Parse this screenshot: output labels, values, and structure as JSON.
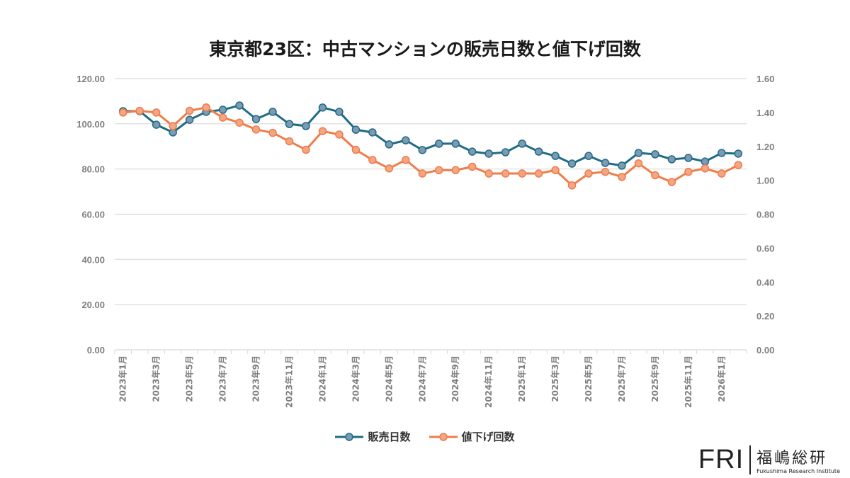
{
  "chart_data": {
    "type": "line",
    "title": "東京都23区：中古マンションの販売日数と値下げ回数",
    "x": [
      "2023年1月",
      "2023年2月",
      "2023年3月",
      "2023年4月",
      "2023年5月",
      "2023年6月",
      "2023年7月",
      "2023年8月",
      "2023年9月",
      "2023年10月",
      "2023年11月",
      "2023年12月",
      "2024年1月",
      "2024年2月",
      "2024年3月",
      "2024年4月",
      "2024年5月",
      "2024年6月",
      "2024年7月",
      "2024年8月",
      "2024年9月",
      "2024年10月",
      "2024年11月",
      "2024年12月",
      "2025年1月",
      "2025年2月",
      "2025年3月",
      "2025年4月",
      "2025年5月",
      "2025年6月",
      "2025年7月",
      "2025年8月",
      "2025年9月",
      "2025年10月",
      "2025年11月",
      "2025年12月",
      "2026年1月",
      "2026年2月"
    ],
    "x_tick_labels": [
      "2023年1月",
      "2023年3月",
      "2023年5月",
      "2023年7月",
      "2023年9月",
      "2023年11月",
      "2024年1月",
      "2024年3月",
      "2024年5月",
      "2024年7月",
      "2024年9月",
      "2024年11月",
      "2025年1月",
      "2025年3月",
      "2025年5月",
      "2025年7月",
      "2025年9月",
      "2025年11月",
      "2026年1月"
    ],
    "y_left": {
      "ylim": [
        0,
        120
      ],
      "ticks": [
        "0.00",
        "20.00",
        "40.00",
        "60.00",
        "80.00",
        "100.00",
        "120.00"
      ]
    },
    "y_right": {
      "ylim": [
        0,
        1.6
      ],
      "ticks": [
        "0.00",
        "0.20",
        "0.40",
        "0.60",
        "0.80",
        "1.00",
        "1.20",
        "1.40",
        "1.60"
      ]
    },
    "grid": true,
    "legend_placement": "bottom",
    "series": [
      {
        "name": "販売日数",
        "axis": "left",
        "color": "#1f6b85",
        "marker_color": "#7c9bb3",
        "values": [
          105.6,
          105.6,
          99.6,
          96.2,
          101.8,
          105.3,
          106.2,
          108.1,
          102.1,
          105.3,
          99.9,
          99.0,
          107.2,
          105.3,
          97.4,
          96.2,
          90.9,
          92.7,
          88.4,
          91.2,
          91.2,
          87.7,
          86.8,
          87.4,
          91.2,
          87.7,
          85.8,
          82.4,
          85.8,
          82.7,
          81.5,
          87.1,
          86.5,
          84.3,
          84.9,
          83.3,
          87.1,
          86.8
        ]
      },
      {
        "name": "値下げ回数",
        "axis": "right",
        "color": "#ee7d4a",
        "marker_color": "#f4a584",
        "values": [
          1.4,
          1.41,
          1.4,
          1.32,
          1.41,
          1.43,
          1.37,
          1.34,
          1.3,
          1.28,
          1.23,
          1.18,
          1.29,
          1.27,
          1.18,
          1.12,
          1.07,
          1.12,
          1.04,
          1.06,
          1.06,
          1.08,
          1.04,
          1.04,
          1.04,
          1.04,
          1.06,
          0.97,
          1.04,
          1.05,
          1.02,
          1.1,
          1.03,
          0.99,
          1.05,
          1.07,
          1.04,
          1.09
        ]
      }
    ]
  },
  "logo": {
    "mark": "FRI",
    "name": "福嶋総研",
    "english": "Fukushima Research Institute"
  }
}
